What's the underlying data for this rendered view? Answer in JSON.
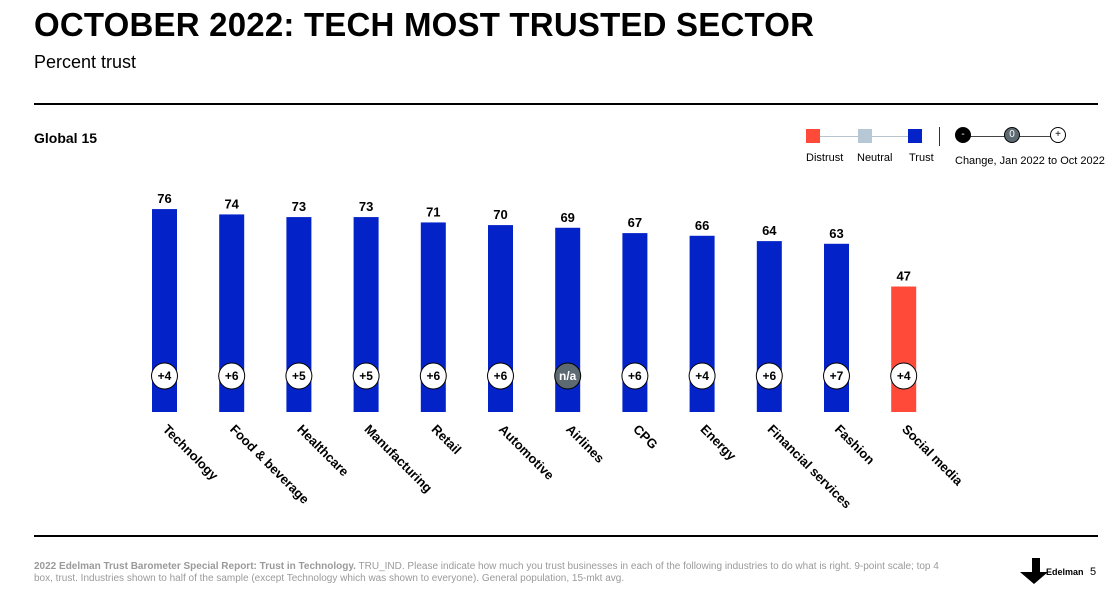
{
  "header": {
    "title": "OCTOBER 2022: TECH MOST TRUSTED SECTOR",
    "subtitle": "Percent trust",
    "region": "Global 15"
  },
  "legend": {
    "distrust_label": "Distrust",
    "neutral_label": "Neutral",
    "trust_label": "Trust",
    "change_minus": "-",
    "change_zero": "0",
    "change_plus": "+",
    "change_label": "Change, Jan 2022 to Oct 2022",
    "colors": {
      "distrust": "#ff4a3a",
      "neutral": "#b6c8d6",
      "trust": "#0323c8"
    }
  },
  "chart_data": {
    "type": "bar",
    "title": "OCTOBER 2022: TECH MOST TRUSTED SECTOR",
    "subtitle": "Percent trust",
    "ylim": [
      0,
      100
    ],
    "grid": false,
    "categories": [
      "Technology",
      "Food & beverage",
      "Healthcare",
      "Manufacturing",
      "Retail",
      "Automotive",
      "Airlines",
      "CPG",
      "Energy",
      "Financial services",
      "Fashion",
      "Social media"
    ],
    "values": [
      76,
      74,
      73,
      73,
      71,
      70,
      69,
      67,
      66,
      64,
      63,
      47
    ],
    "bar_status": [
      "trust",
      "trust",
      "trust",
      "trust",
      "trust",
      "trust",
      "trust",
      "trust",
      "trust",
      "trust",
      "trust",
      "distrust"
    ],
    "change": [
      "+4",
      "+6",
      "+5",
      "+5",
      "+6",
      "+6",
      "n/a",
      "+6",
      "+4",
      "+6",
      "+7",
      "+4"
    ],
    "change_kind": [
      "plus",
      "plus",
      "plus",
      "plus",
      "plus",
      "plus",
      "zero",
      "plus",
      "plus",
      "plus",
      "plus",
      "plus"
    ]
  },
  "footer": {
    "source_bold": "2022 Edelman Trust Barometer Special Report: Trust in Technology.",
    "source_text": " TRU_IND. Please indicate how much you trust businesses in each of the following industries to do what is right. 9-point scale; top 4 box, trust. Industries shown to half of the sample (except Technology which was shown to everyone). General population, 15-mkt avg.",
    "brand": "Edelman",
    "page_number": "5"
  }
}
